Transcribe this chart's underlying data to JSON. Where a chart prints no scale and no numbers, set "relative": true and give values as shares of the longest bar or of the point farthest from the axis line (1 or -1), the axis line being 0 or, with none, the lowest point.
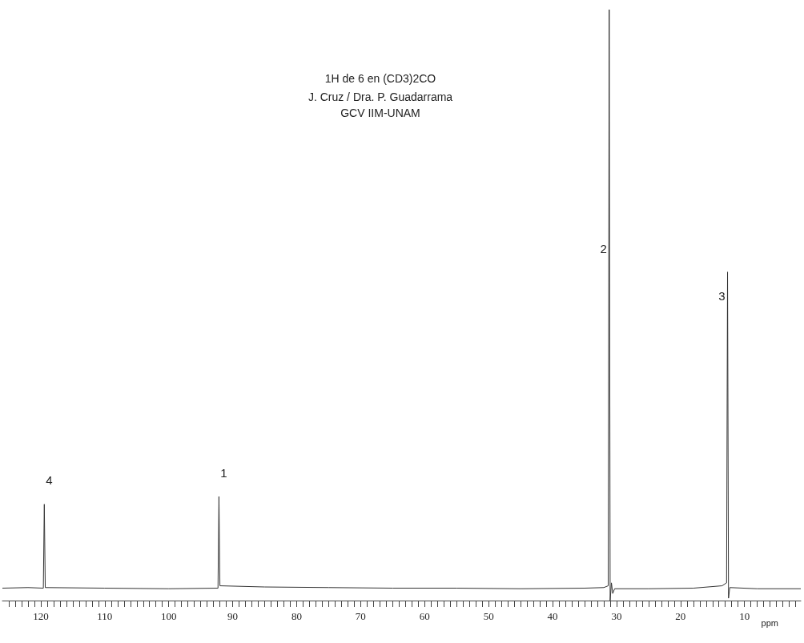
{
  "chart_data": {
    "type": "line",
    "relative": true,
    "title": "1H de 6 en (CD3)2CO",
    "subtitle": "J. Cruz / Dra. P. Guadarrama",
    "xlabel": "ppm",
    "annotations": [
      "GCV IIM-UNAM",
      {
        "text": "4",
        "x": 119.45,
        "y": 0.163
      },
      {
        "text": "1",
        "x": 92.15,
        "y": 0.176
      },
      {
        "text": "2",
        "x": 31.15,
        "y": 0.596
      },
      {
        "text": "3",
        "x": 12.65,
        "y": 0.515
      }
    ],
    "x": [
      126,
      122,
      119.6,
      119.45,
      119.3,
      110,
      100,
      92.3,
      92.15,
      92.0,
      85,
      75,
      65,
      55,
      45,
      35,
      32,
      31.3,
      31.15,
      31.0,
      30.8,
      30.6,
      30.3,
      25,
      18,
      13.5,
      12.8,
      12.65,
      12.5,
      12.3,
      8,
      1.2
    ],
    "series": [
      {
        "color": "#333333",
        "values": [
          0.021,
          0.022,
          0.021,
          0.163,
          0.022,
          0.021,
          0.02,
          0.021,
          0.176,
          0.025,
          0.023,
          0.022,
          0.021,
          0.021,
          0.02,
          0.021,
          0.022,
          0.025,
          1,
          0,
          0.03,
          0.012,
          0.02,
          0.02,
          0.021,
          0.025,
          0.03,
          0.556,
          0.004,
          0.022,
          0.02,
          0.02
        ]
      }
    ],
    "xlim": [
      126,
      1.2
    ],
    "xticks": [
      {
        "value": 2,
        "label": null
      },
      {
        "value": 3,
        "label": null
      },
      {
        "value": 4,
        "label": null
      },
      {
        "value": 5,
        "label": null
      },
      {
        "value": 6,
        "label": null
      },
      {
        "value": 7,
        "label": null
      },
      {
        "value": 8,
        "label": null
      },
      {
        "value": 9,
        "label": null
      },
      10,
      {
        "value": 11,
        "label": null
      },
      {
        "value": 12,
        "label": null
      },
      {
        "value": 13,
        "label": null
      },
      {
        "value": 14,
        "label": null
      },
      {
        "value": 15,
        "label": null
      },
      {
        "value": 16,
        "label": null
      },
      {
        "value": 17,
        "label": null
      },
      {
        "value": 18,
        "label": null
      },
      {
        "value": 19,
        "label": null
      },
      20,
      {
        "value": 21,
        "label": null
      },
      {
        "value": 22,
        "label": null
      },
      {
        "value": 23,
        "label": null
      },
      {
        "value": 24,
        "label": null
      },
      {
        "value": 25,
        "label": null
      },
      {
        "value": 26,
        "label": null
      },
      {
        "value": 27,
        "label": null
      },
      {
        "value": 28,
        "label": null
      },
      {
        "value": 29,
        "label": null
      },
      30,
      {
        "value": 31,
        "label": null
      },
      {
        "value": 32,
        "label": null
      },
      {
        "value": 33,
        "label": null
      },
      {
        "value": 34,
        "label": null
      },
      {
        "value": 35,
        "label": null
      },
      {
        "value": 36,
        "label": null
      },
      {
        "value": 37,
        "label": null
      },
      {
        "value": 38,
        "label": null
      },
      {
        "value": 39,
        "label": null
      },
      40,
      {
        "value": 41,
        "label": null
      },
      {
        "value": 42,
        "label": null
      },
      {
        "value": 43,
        "label": null
      },
      {
        "value": 44,
        "label": null
      },
      {
        "value": 45,
        "label": null
      },
      {
        "value": 46,
        "label": null
      },
      {
        "value": 47,
        "label": null
      },
      {
        "value": 48,
        "label": null
      },
      {
        "value": 49,
        "label": null
      },
      50,
      {
        "value": 51,
        "label": null
      },
      {
        "value": 52,
        "label": null
      },
      {
        "value": 53,
        "label": null
      },
      {
        "value": 54,
        "label": null
      },
      {
        "value": 55,
        "label": null
      },
      {
        "value": 56,
        "label": null
      },
      {
        "value": 57,
        "label": null
      },
      {
        "value": 58,
        "label": null
      },
      {
        "value": 59,
        "label": null
      },
      60,
      {
        "value": 61,
        "label": null
      },
      {
        "value": 62,
        "label": null
      },
      {
        "value": 63,
        "label": null
      },
      {
        "value": 64,
        "label": null
      },
      {
        "value": 65,
        "label": null
      },
      {
        "value": 66,
        "label": null
      },
      {
        "value": 67,
        "label": null
      },
      {
        "value": 68,
        "label": null
      },
      {
        "value": 69,
        "label": null
      },
      70,
      {
        "value": 71,
        "label": null
      },
      {
        "value": 72,
        "label": null
      },
      {
        "value": 73,
        "label": null
      },
      {
        "value": 74,
        "label": null
      },
      {
        "value": 75,
        "label": null
      },
      {
        "value": 76,
        "label": null
      },
      {
        "value": 77,
        "label": null
      },
      {
        "value": 78,
        "label": null
      },
      {
        "value": 79,
        "label": null
      },
      80,
      {
        "value": 81,
        "label": null
      },
      {
        "value": 82,
        "label": null
      },
      {
        "value": 83,
        "label": null
      },
      {
        "value": 84,
        "label": null
      },
      {
        "value": 85,
        "label": null
      },
      {
        "value": 86,
        "label": null
      },
      {
        "value": 87,
        "label": null
      },
      {
        "value": 88,
        "label": null
      },
      {
        "value": 89,
        "label": null
      },
      90,
      {
        "value": 91,
        "label": null
      },
      {
        "value": 92,
        "label": null
      },
      {
        "value": 93,
        "label": null
      },
      {
        "value": 94,
        "label": null
      },
      {
        "value": 95,
        "label": null
      },
      {
        "value": 96,
        "label": null
      },
      {
        "value": 97,
        "label": null
      },
      {
        "value": 98,
        "label": null
      },
      {
        "value": 99,
        "label": null
      },
      100,
      {
        "value": 101,
        "label": null
      },
      {
        "value": 102,
        "label": null
      },
      {
        "value": 103,
        "label": null
      },
      {
        "value": 104,
        "label": null
      },
      {
        "value": 105,
        "label": null
      },
      {
        "value": 106,
        "label": null
      },
      {
        "value": 107,
        "label": null
      },
      {
        "value": 108,
        "label": null
      },
      {
        "value": 109,
        "label": null
      },
      110,
      {
        "value": 111,
        "label": null
      },
      {
        "value": 112,
        "label": null
      },
      {
        "value": 113,
        "label": null
      },
      {
        "value": 114,
        "label": null
      },
      {
        "value": 115,
        "label": null
      },
      {
        "value": 116,
        "label": null
      },
      {
        "value": 117,
        "label": null
      },
      {
        "value": 118,
        "label": null
      },
      {
        "value": 119,
        "label": null
      },
      120,
      {
        "value": 121,
        "label": null
      },
      {
        "value": 122,
        "label": null
      },
      {
        "value": 123,
        "label": null
      },
      {
        "value": 124,
        "label": null
      },
      {
        "value": 125,
        "label": null
      }
    ],
    "grid": false,
    "marker": "none",
    "line_style": "solid"
  }
}
